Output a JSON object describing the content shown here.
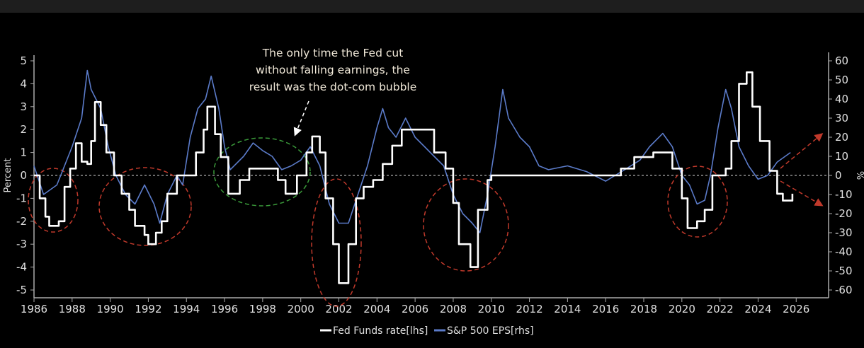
{
  "chart_data": {
    "type": "line",
    "title": "",
    "xlabel": "",
    "ylabel": "Percent",
    "ylabel_right": "%",
    "xlim": [
      1986,
      2027.7
    ],
    "ylim": [
      -5,
      5
    ],
    "ylim_right": [
      -60,
      60
    ],
    "x_ticks": [
      "1986",
      "1988",
      "1990",
      "1992",
      "1994",
      "1996",
      "1998",
      "2000",
      "2002",
      "2004",
      "2006",
      "2008",
      "2010",
      "2012",
      "2014",
      "2016",
      "2018",
      "2020",
      "2022",
      "2024",
      "2026"
    ],
    "y_ticks": [
      "5",
      "4",
      "3",
      "2",
      "1",
      "0",
      "-1",
      "-2",
      "-3",
      "-4",
      "-5"
    ],
    "y_ticks_right": [
      "60",
      "50",
      "40",
      "30",
      "20",
      "10",
      "0",
      "-10",
      "-20",
      "-30",
      "-40",
      "-50",
      "-60"
    ],
    "legend": {
      "placement": "bottom",
      "entries": [
        "Fed Funds rate[lhs]",
        "S&P 500 EPS[rhs]"
      ]
    },
    "annotation": [
      "The only time the Fed cut",
      "without falling earnings, the",
      "result was the dot-com bubble"
    ],
    "colors": {
      "fed": "#ffffff",
      "eps": "#5b7bc9",
      "red_mark": "#c0392b",
      "green_mark": "#3a9a3a"
    },
    "series": [
      {
        "name": "Fed Funds rate[lhs]",
        "axis": "left",
        "points": [
          [
            1986,
            0
          ],
          [
            1986.3,
            -1
          ],
          [
            1986.6,
            -1.8
          ],
          [
            1986.8,
            -2.2
          ],
          [
            1987.3,
            -2
          ],
          [
            1987.6,
            -0.5
          ],
          [
            1987.9,
            0.3
          ],
          [
            1988.2,
            1.4
          ],
          [
            1988.5,
            0.6
          ],
          [
            1988.8,
            0.5
          ],
          [
            1989.0,
            1.5
          ],
          [
            1989.2,
            3.2
          ],
          [
            1989.5,
            2.2
          ],
          [
            1989.8,
            1.0
          ],
          [
            1990.2,
            0
          ],
          [
            1990.6,
            -0.8
          ],
          [
            1991.0,
            -1.5
          ],
          [
            1991.3,
            -2.2
          ],
          [
            1991.8,
            -2.6
          ],
          [
            1992.0,
            -3.0
          ],
          [
            1992.4,
            -2.5
          ],
          [
            1992.7,
            -2.0
          ],
          [
            1993.0,
            -0.8
          ],
          [
            1993.5,
            0
          ],
          [
            1994.0,
            0
          ],
          [
            1994.5,
            1.0
          ],
          [
            1994.9,
            2.0
          ],
          [
            1995.1,
            3.0
          ],
          [
            1995.5,
            1.8
          ],
          [
            1995.8,
            0.8
          ],
          [
            1996.2,
            -0.8
          ],
          [
            1996.8,
            -0.2
          ],
          [
            1997.3,
            0.3
          ],
          [
            1998.2,
            0.3
          ],
          [
            1998.8,
            -0.2
          ],
          [
            1999.2,
            -0.8
          ],
          [
            1999.8,
            0
          ],
          [
            2000.3,
            1.0
          ],
          [
            2000.6,
            1.7
          ],
          [
            2001.0,
            1.0
          ],
          [
            2001.3,
            -1.0
          ],
          [
            2001.7,
            -3.0
          ],
          [
            2002.0,
            -4.7
          ],
          [
            2002.5,
            -3.0
          ],
          [
            2002.9,
            -1.0
          ],
          [
            2003.3,
            -0.5
          ],
          [
            2003.8,
            -0.2
          ],
          [
            2004.3,
            0.5
          ],
          [
            2004.8,
            1.3
          ],
          [
            2005.3,
            2.0
          ],
          [
            2006.5,
            2.0
          ],
          [
            2007.0,
            1.0
          ],
          [
            2007.6,
            0.3
          ],
          [
            2008.0,
            -1.2
          ],
          [
            2008.3,
            -3.0
          ],
          [
            2008.9,
            -4.0
          ],
          [
            2009.3,
            -1.5
          ],
          [
            2009.8,
            -0.2
          ],
          [
            2010.0,
            0
          ],
          [
            2016.0,
            0
          ],
          [
            2016.8,
            0.3
          ],
          [
            2017.5,
            0.8
          ],
          [
            2018.5,
            1.0
          ],
          [
            2019.0,
            1.0
          ],
          [
            2019.5,
            0.3
          ],
          [
            2020.0,
            -1.0
          ],
          [
            2020.3,
            -2.3
          ],
          [
            2020.8,
            -2.0
          ],
          [
            2021.2,
            -1.5
          ],
          [
            2021.6,
            0
          ],
          [
            2022.3,
            0.3
          ],
          [
            2022.6,
            1.5
          ],
          [
            2023.0,
            4.0
          ],
          [
            2023.4,
            4.5
          ],
          [
            2023.7,
            3.0
          ],
          [
            2024.1,
            1.5
          ],
          [
            2024.6,
            0.2
          ],
          [
            2025.0,
            -0.8
          ],
          [
            2025.3,
            -1.1
          ],
          [
            2025.8,
            -1.1
          ],
          [
            2025.8,
            -0.8
          ]
        ]
      },
      {
        "name": "S&P 500 EPS[rhs]",
        "axis": "right",
        "points": [
          [
            1986,
            5
          ],
          [
            1986.5,
            -10
          ],
          [
            1987.2,
            -5
          ],
          [
            1987.6,
            5
          ],
          [
            1988.0,
            15
          ],
          [
            1988.5,
            30
          ],
          [
            1988.8,
            55
          ],
          [
            1989.0,
            45
          ],
          [
            1989.5,
            35
          ],
          [
            1989.9,
            15
          ],
          [
            1990.3,
            0
          ],
          [
            1990.8,
            -10
          ],
          [
            1991.3,
            -15
          ],
          [
            1991.8,
            -5
          ],
          [
            1992.3,
            -15
          ],
          [
            1992.6,
            -25
          ],
          [
            1993.0,
            -10
          ],
          [
            1993.5,
            0
          ],
          [
            1993.8,
            -5
          ],
          [
            1994.2,
            20
          ],
          [
            1994.6,
            35
          ],
          [
            1995.0,
            40
          ],
          [
            1995.3,
            52
          ],
          [
            1995.7,
            35
          ],
          [
            1996.0,
            15
          ],
          [
            1996.3,
            3
          ],
          [
            1997.0,
            10
          ],
          [
            1997.5,
            17
          ],
          [
            1998.0,
            13
          ],
          [
            1998.5,
            10
          ],
          [
            1999.0,
            3
          ],
          [
            1999.5,
            5
          ],
          [
            2000.0,
            8
          ],
          [
            2000.5,
            15
          ],
          [
            2001.0,
            5
          ],
          [
            2001.5,
            -15
          ],
          [
            2002.0,
            -25
          ],
          [
            2002.5,
            -25
          ],
          [
            2003.0,
            -10
          ],
          [
            2003.5,
            5
          ],
          [
            2004.0,
            25
          ],
          [
            2004.3,
            35
          ],
          [
            2004.6,
            25
          ],
          [
            2005.0,
            20
          ],
          [
            2005.5,
            30
          ],
          [
            2006.0,
            20
          ],
          [
            2006.5,
            15
          ],
          [
            2007.0,
            10
          ],
          [
            2007.5,
            5
          ],
          [
            2008.0,
            -10
          ],
          [
            2008.5,
            -20
          ],
          [
            2009.0,
            -25
          ],
          [
            2009.4,
            -30
          ],
          [
            2009.8,
            -10
          ],
          [
            2010.2,
            15
          ],
          [
            2010.6,
            45
          ],
          [
            2010.9,
            30
          ],
          [
            2011.5,
            20
          ],
          [
            2012.0,
            15
          ],
          [
            2012.5,
            5
          ],
          [
            2013.0,
            3
          ],
          [
            2014.0,
            5
          ],
          [
            2015.0,
            2
          ],
          [
            2016.0,
            -3
          ],
          [
            2016.5,
            0
          ],
          [
            2017.0,
            3
          ],
          [
            2017.8,
            8
          ],
          [
            2018.3,
            15
          ],
          [
            2019.0,
            22
          ],
          [
            2019.5,
            15
          ],
          [
            2020.0,
            0
          ],
          [
            2020.4,
            -5
          ],
          [
            2020.8,
            -15
          ],
          [
            2021.2,
            -13
          ],
          [
            2021.5,
            0
          ],
          [
            2021.9,
            25
          ],
          [
            2022.3,
            45
          ],
          [
            2022.6,
            35
          ],
          [
            2023.0,
            15
          ],
          [
            2023.5,
            5
          ],
          [
            2024.0,
            -2
          ],
          [
            2024.5,
            0
          ],
          [
            2025.0,
            7
          ],
          [
            2025.7,
            12
          ]
        ]
      }
    ]
  }
}
